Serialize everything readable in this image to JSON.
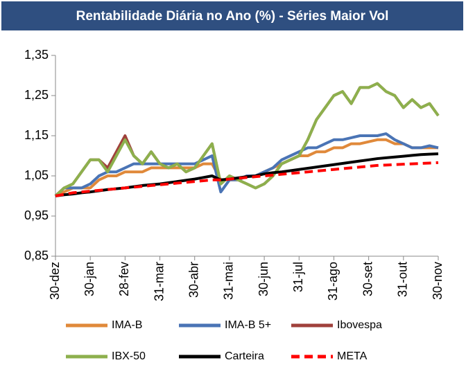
{
  "chart_data": {
    "type": "line",
    "title": "Rentabilidade Diária no Ano (%) - Séries Maior Vol",
    "categories": [
      "30-dez",
      null,
      null,
      null,
      "30-jan",
      null,
      null,
      null,
      "28-fev",
      null,
      null,
      null,
      "31-mar",
      null,
      null,
      null,
      "30-abr",
      null,
      null,
      null,
      "31-mai",
      null,
      null,
      null,
      "30-jun",
      null,
      null,
      null,
      "31-jul",
      null,
      null,
      null,
      "31-ago",
      null,
      null,
      null,
      "30-set",
      null,
      null,
      null,
      "31-out",
      null,
      null,
      null,
      "30-nov"
    ],
    "ylim": [
      0.85,
      1.35
    ],
    "yticks": [
      {
        "value": 0.85,
        "label": "0,85"
      },
      {
        "value": 0.95,
        "label": "0,95"
      },
      {
        "value": 1.05,
        "label": "1,05"
      },
      {
        "value": 1.15,
        "label": "1,15"
      },
      {
        "value": 1.25,
        "label": "1,25"
      },
      {
        "value": 1.35,
        "label": "1,35"
      }
    ],
    "grid": false,
    "legend": "bottom",
    "series": [
      {
        "name": "IMA-B",
        "color": "#e0893a",
        "values": [
          1.0,
          1.01,
          1.02,
          1.02,
          1.02,
          1.04,
          1.05,
          1.05,
          1.06,
          1.06,
          1.06,
          1.07,
          1.07,
          1.07,
          1.07,
          1.07,
          1.07,
          1.08,
          1.08,
          1.04,
          1.04,
          1.04,
          1.05,
          1.05,
          1.06,
          1.07,
          1.08,
          1.09,
          1.1,
          1.1,
          1.11,
          1.11,
          1.12,
          1.12,
          1.13,
          1.13,
          1.135,
          1.14,
          1.14,
          1.13,
          1.13,
          1.12,
          1.12,
          1.12,
          1.12
        ]
      },
      {
        "name": "IMA-B 5+",
        "color": "#4a74b5",
        "values": [
          1.0,
          1.02,
          1.02,
          1.02,
          1.03,
          1.05,
          1.06,
          1.06,
          1.07,
          1.08,
          1.08,
          1.08,
          1.08,
          1.08,
          1.08,
          1.08,
          1.08,
          1.09,
          1.1,
          1.01,
          1.04,
          1.04,
          1.05,
          1.05,
          1.06,
          1.07,
          1.09,
          1.1,
          1.11,
          1.12,
          1.12,
          1.13,
          1.14,
          1.14,
          1.145,
          1.15,
          1.15,
          1.15,
          1.155,
          1.14,
          1.13,
          1.12,
          1.12,
          1.125,
          1.12
        ]
      },
      {
        "name": "Ibovespa",
        "color": "#a0413c",
        "values": [
          1.0,
          1.02,
          1.03,
          1.06,
          1.09,
          1.09,
          1.07,
          1.11,
          1.15,
          1.1,
          1.08,
          1.11,
          1.08,
          1.07,
          1.08,
          1.06,
          1.07,
          1.1,
          1.13,
          1.03,
          1.05,
          1.04,
          1.03,
          1.02,
          1.03,
          1.05,
          1.08,
          1.09,
          1.1,
          1.14,
          1.19,
          1.22,
          1.25,
          1.26,
          1.23,
          1.27,
          1.27,
          1.28,
          1.26,
          1.25,
          1.22,
          1.24,
          1.22,
          1.23,
          1.2
        ]
      },
      {
        "name": "IBX-50",
        "color": "#8db04d",
        "values": [
          1.0,
          1.02,
          1.03,
          1.06,
          1.09,
          1.09,
          1.06,
          1.1,
          1.14,
          1.1,
          1.08,
          1.11,
          1.08,
          1.07,
          1.08,
          1.06,
          1.07,
          1.1,
          1.13,
          1.03,
          1.05,
          1.04,
          1.03,
          1.02,
          1.03,
          1.05,
          1.08,
          1.09,
          1.1,
          1.14,
          1.19,
          1.22,
          1.25,
          1.26,
          1.23,
          1.27,
          1.27,
          1.28,
          1.26,
          1.25,
          1.22,
          1.24,
          1.22,
          1.23,
          1.2
        ]
      },
      {
        "name": "Carteira",
        "color": "#000000",
        "values": [
          1.0,
          1.003,
          1.005,
          1.008,
          1.01,
          1.013,
          1.016,
          1.018,
          1.02,
          1.023,
          1.026,
          1.028,
          1.03,
          1.033,
          1.036,
          1.039,
          1.042,
          1.046,
          1.05,
          1.04,
          1.042,
          1.045,
          1.048,
          1.05,
          1.055,
          1.058,
          1.06,
          1.063,
          1.066,
          1.069,
          1.072,
          1.075,
          1.078,
          1.081,
          1.084,
          1.087,
          1.09,
          1.093,
          1.095,
          1.097,
          1.099,
          1.101,
          1.103,
          1.104,
          1.105
        ]
      },
      {
        "name": "META",
        "color": "#ff0000",
        "dashed": true,
        "values": [
          1.0,
          1.004,
          1.008,
          1.01,
          1.012,
          1.014,
          1.016,
          1.018,
          1.02,
          1.022,
          1.024,
          1.026,
          1.028,
          1.03,
          1.032,
          1.034,
          1.036,
          1.038,
          1.04,
          1.04,
          1.042,
          1.044,
          1.046,
          1.048,
          1.05,
          1.052,
          1.054,
          1.056,
          1.058,
          1.06,
          1.062,
          1.064,
          1.066,
          1.068,
          1.07,
          1.072,
          1.074,
          1.076,
          1.077,
          1.078,
          1.079,
          1.08,
          1.081,
          1.082,
          1.083
        ]
      }
    ]
  }
}
